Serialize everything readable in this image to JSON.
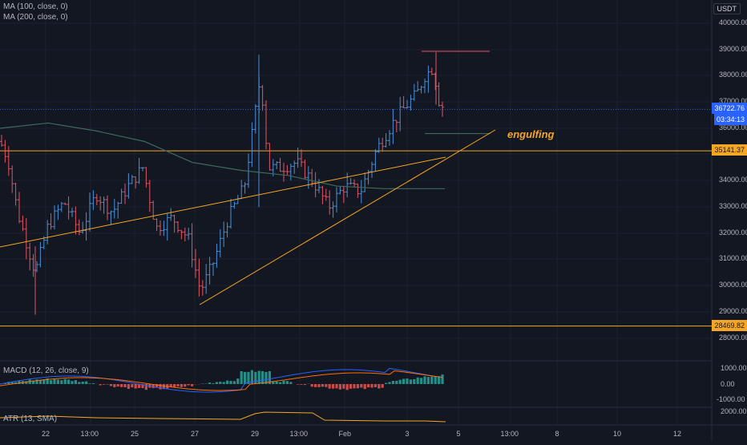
{
  "currency": "USDT",
  "legends": {
    "ma100": "MA (100, close, 0)",
    "ma200": "MA (200, close, 0)",
    "macd": "MACD (12, 26, close, 9)",
    "atr": "ATR (13, SMA)"
  },
  "annotation": "engulfing",
  "price_axis": [
    "40000.00",
    "39000.00",
    "38000.00",
    "37000.00",
    "36000.00",
    "35000.00",
    "34000.00",
    "33000.00",
    "32000.00",
    "31000.00",
    "30000.00",
    "29000.00",
    "28000.00"
  ],
  "price_tags": {
    "current": "36722.76",
    "countdown": "03:34:13",
    "level_high": "35141.37",
    "level_low": "28469.82"
  },
  "macd_axis": [
    "1000.00",
    "0.00",
    "-1000.00"
  ],
  "atr_axis": [
    "2000.00"
  ],
  "time_axis": [
    "22",
    "13:00",
    "25",
    "27",
    "29",
    "13:00",
    "Feb",
    "3",
    "5",
    "13:00",
    "8",
    "10",
    "12"
  ],
  "colors": {
    "background": "#131722",
    "up": "#26a69a",
    "down": "#ef5350",
    "bar_up": "#4a90d9",
    "bar_down": "#e05563",
    "ma": "#3d6b5a",
    "orange": "#f5a623",
    "current_price": "#2962ff"
  },
  "chart_data": {
    "type": "ohlc",
    "price_range": [
      27500,
      40500
    ],
    "horizontal_levels": [
      35141.37,
      28469.82
    ],
    "current_price": 36722.76
  }
}
